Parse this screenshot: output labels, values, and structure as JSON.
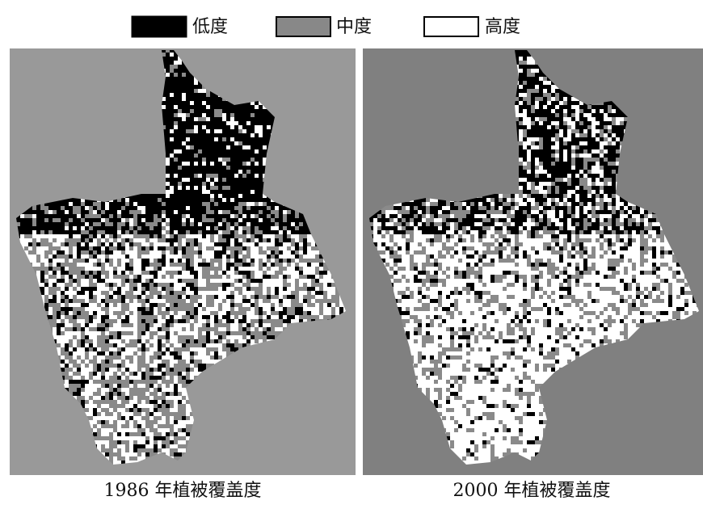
{
  "legend": {
    "items": [
      {
        "label": "低度"
      },
      {
        "label": "中度"
      },
      {
        "label": "高度"
      }
    ]
  },
  "maps": [
    {
      "caption": "1986 年植被覆盖度"
    },
    {
      "caption": "2000 年植被覆盖度"
    }
  ]
}
